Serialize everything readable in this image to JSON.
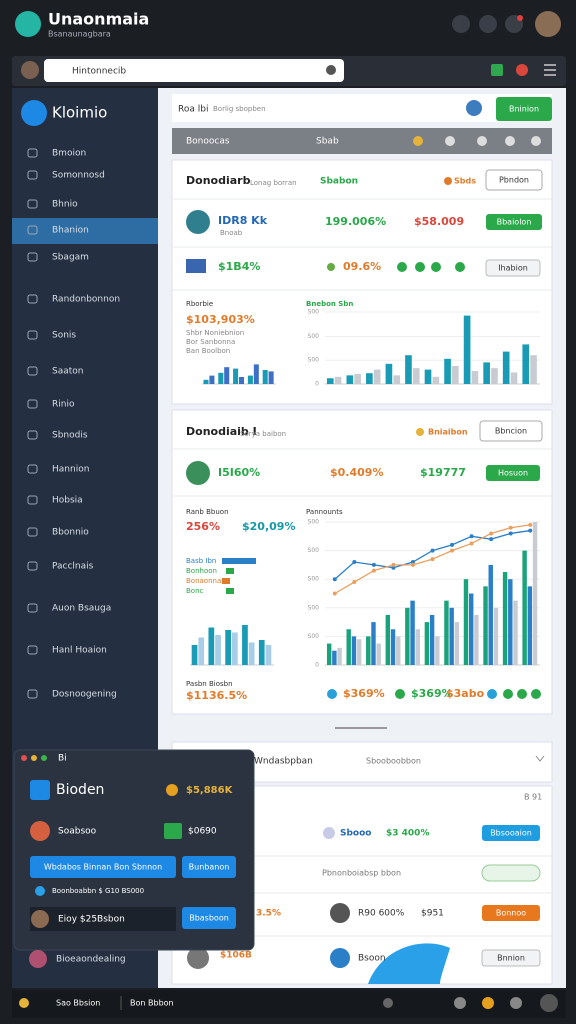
{
  "header": {
    "title": "Unaonmaia",
    "subtitle": "Bsanaunagbara"
  },
  "search": {
    "placeholder": "Hintonnecib"
  },
  "sidebar": {
    "title": "Kloimio",
    "items": [
      "Bmoion",
      "Somonnosd",
      "Bhnio",
      "Bhanion",
      "Sbagam",
      "Randonbonnon",
      "Sonis",
      "Saaton",
      "Rinio",
      "Sbnodis",
      "Hannion",
      "Hobsia",
      "Bbonnio",
      "Pacclnais",
      "Auon Bsauga",
      "Hanl Hoaion",
      "Dosnoogening",
      "Bioeaondealing"
    ]
  },
  "topbar": {
    "title": "Roa lbi",
    "subtitle": "Borlig sbopben",
    "button": "Bninion"
  },
  "toolbar": {
    "left": "Bonoocas",
    "mid": "Sbab"
  },
  "card1": {
    "title": "Donodiarb",
    "subtitle": "Lonag borran",
    "tag": "Sbabon",
    "badge": "Sbds",
    "button": "Pbndon",
    "row1": {
      "name": "IDR8 Kk",
      "sub": "Bnoab",
      "v1": "199.006%",
      "v2": "$58.009",
      "button": "Bbaiolon"
    },
    "row2": {
      "name": "$1B4%",
      "v1": "09.6%",
      "button": "Ihabion"
    },
    "chart_left": {
      "title": "Rborbie",
      "value": "$103,903%",
      "lines": [
        "Shbr Noniebnion",
        "Bor Sanbonna",
        "Ban Boolbon"
      ],
      "ylim": [
        0,
        100
      ],
      "series": [
        {
          "type": "bar",
          "color": "#1a9bb5",
          "values": [
            15,
            40,
            55,
            30,
            50
          ]
        },
        {
          "type": "bar",
          "color": "#3d6fc4",
          "values": [
            30,
            60,
            25,
            70,
            45
          ]
        }
      ]
    },
    "chart_right": {
      "title": "Bnebon Sbn",
      "ylim": [
        0,
        100
      ],
      "yticks": [
        {
          "value": 100,
          "label": "S00"
        },
        {
          "value": 66,
          "label": "S00"
        },
        {
          "value": 33,
          "label": "S00"
        },
        0
      ],
      "series": [
        {
          "type": "bar",
          "color": "#1a9bb5",
          "values": [
            8,
            12,
            15,
            28,
            40,
            20,
            35,
            95,
            30,
            45,
            55
          ]
        },
        {
          "type": "bar",
          "color": "#c8ccd2",
          "values": [
            10,
            14,
            20,
            12,
            22,
            10,
            25,
            18,
            22,
            16,
            40
          ]
        }
      ]
    }
  },
  "card2": {
    "title": "Donodiaib I",
    "subtitle": "Sorya baibon",
    "badge": "Bniaibon",
    "button": "Bbncion",
    "row": {
      "v1": "I5I60%",
      "v2": "$0.409%",
      "v3": "$19777",
      "button": "Hosuon"
    },
    "chart_left": {
      "title": "Ranb Bbuon",
      "v1": "256%",
      "v2": "$20,09%",
      "legend": [
        "Basb Ibn",
        "Bonhoon",
        "Bonaonnas",
        "Bonc"
      ],
      "footer_title": "Pasbn Biosbn",
      "footer_value": "$1136.5%",
      "ylim": [
        0,
        100
      ],
      "series": [
        {
          "type": "bar",
          "color": "#1a9bb5",
          "values": [
            40,
            75,
            70,
            80,
            50
          ]
        },
        {
          "type": "bar",
          "color": "#a8cde8",
          "values": [
            55,
            60,
            65,
            45,
            40
          ]
        }
      ]
    },
    "chart_right": {
      "title": "Pannounts",
      "ylim": [
        0,
        100
      ],
      "footer": [
        "$369%",
        "$369%",
        "$3abo"
      ],
      "yticks": [
        {
          "value": 100,
          "label": "S00"
        },
        {
          "value": 80,
          "label": "S00"
        },
        {
          "value": 60,
          "label": "S00"
        },
        {
          "value": 40,
          "label": "S00"
        },
        {
          "value": 20,
          "label": "S00"
        },
        0
      ],
      "series": [
        {
          "type": "bar",
          "color": "#1aa37a",
          "values": [
            15,
            25,
            20,
            35,
            40,
            30,
            45,
            60,
            55,
            65,
            80
          ]
        },
        {
          "type": "bar",
          "color": "#2a7fc7",
          "values": [
            10,
            20,
            30,
            25,
            45,
            35,
            40,
            50,
            70,
            60,
            55
          ]
        },
        {
          "type": "bar",
          "color": "#c8ccd2",
          "values": [
            12,
            18,
            15,
            20,
            25,
            20,
            30,
            35,
            40,
            45,
            100
          ]
        },
        {
          "type": "line",
          "color": "#2a7fc7",
          "values": [
            60,
            72,
            70,
            68,
            72,
            80,
            84,
            90,
            88,
            92,
            94
          ]
        },
        {
          "type": "line",
          "color": "#e8a060",
          "values": [
            50,
            58,
            66,
            70,
            70,
            74,
            80,
            85,
            92,
            96,
            98
          ]
        }
      ]
    }
  },
  "card3": {
    "title": "Wndasbpban",
    "subtitle": "Sbooboobbon",
    "tag": "B 91",
    "row1": {
      "v1": "Sbooo",
      "v2": "$3 400%",
      "button": "Bbsooaion"
    },
    "row2": {
      "text": "Pbnonboiabsp bbon"
    },
    "row3": {
      "v0": "3.5%",
      "v1": "R90 600%",
      "v2": "$951",
      "button": "Bonnoo"
    },
    "row4": {
      "v1": "$106B",
      "v2": "Bsoon",
      "button": "Bnnion"
    }
  },
  "popup": {
    "title": "Bi",
    "name": "Bioden",
    "value": "$5,886K",
    "row1": "Soabsoo",
    "row1_value": "$0690",
    "button1": "Wbdabos Binnan Bon Sbnnon",
    "button2": "Bunbanon",
    "note": "Boonboabbn $ G10 BS000",
    "row2": "Eioy $25Bsbon",
    "button3": "Bbasboon"
  },
  "bottombar": {
    "left": "Sao Bbsion",
    "mid": "Bon Bbbon"
  }
}
